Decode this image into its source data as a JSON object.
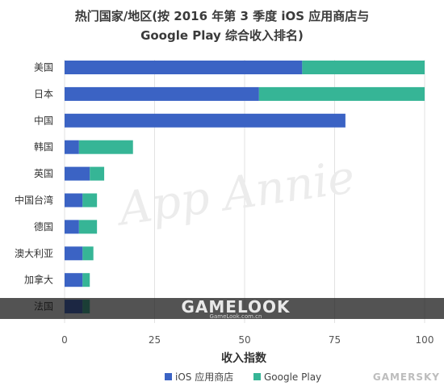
{
  "chart_data": {
    "type": "bar",
    "orientation": "horizontal",
    "stacked": true,
    "title": [
      "热门国家/地区(按 2016 年第 3 季度 iOS 应用商店与",
      "Google Play 综合收入排名)"
    ],
    "xlabel": "收入指数",
    "xlim": [
      0,
      100
    ],
    "xticks": [
      0,
      25,
      50,
      75,
      100
    ],
    "grid": true,
    "legend_position": "bottom",
    "categories": [
      "美国",
      "日本",
      "中国",
      "韩国",
      "英国",
      "中国台湾",
      "德国",
      "澳大利亚",
      "加拿大",
      "法国"
    ],
    "series": [
      {
        "name": "iOS 应用商店",
        "color": "#3b63c4",
        "values": [
          66,
          54,
          78,
          4,
          7,
          5,
          4,
          5,
          5,
          5
        ]
      },
      {
        "name": "Google Play",
        "color": "#36b596",
        "values": [
          34,
          46,
          0,
          15,
          4,
          4,
          5,
          3,
          2,
          2
        ]
      }
    ]
  },
  "watermarks": {
    "app_annie": "App Annie",
    "gamelook": "GAMELOOK",
    "gamelook_url": "GameLook.com.cn",
    "gamersky": "GAMERSKY"
  }
}
